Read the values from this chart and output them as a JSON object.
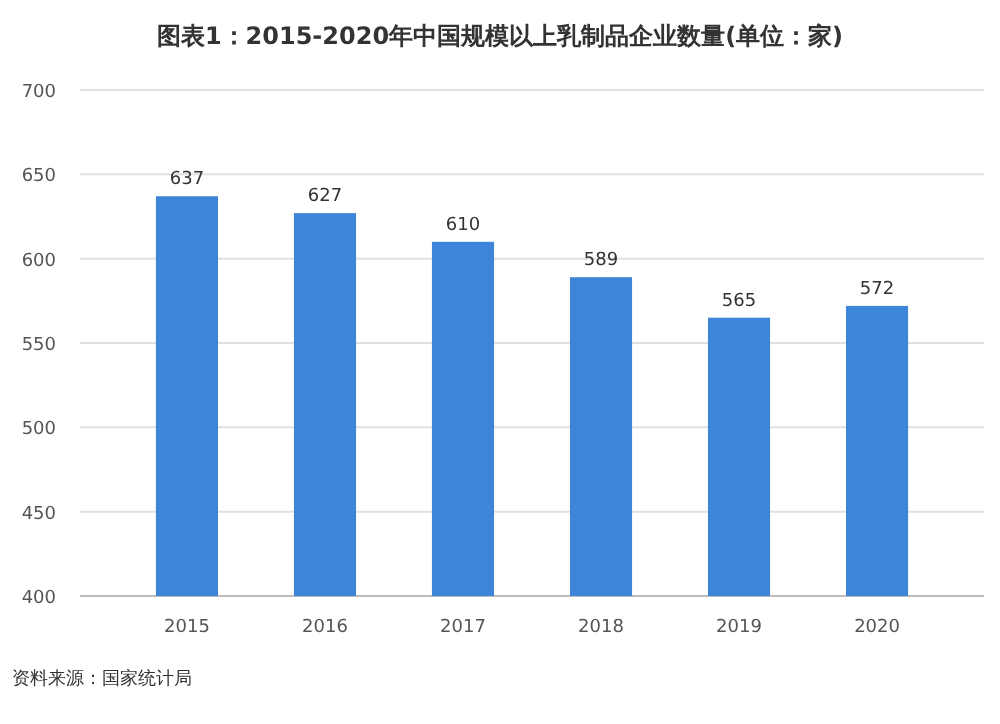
{
  "chart_data": {
    "type": "bar",
    "title": "图表1：2015-2020年中国规模以上乳制品企业数量(单位：家)",
    "categories": [
      "2015",
      "2016",
      "2017",
      "2018",
      "2019",
      "2020"
    ],
    "values": [
      637,
      627,
      610,
      589,
      565,
      572
    ],
    "color": "#3d85d8",
    "ylim": [
      400,
      700
    ],
    "yticks": [
      400,
      450,
      500,
      550,
      600,
      650,
      700
    ],
    "grid": "y",
    "data_labels": true,
    "annotations": [
      "资料来源：国家统计局"
    ]
  }
}
